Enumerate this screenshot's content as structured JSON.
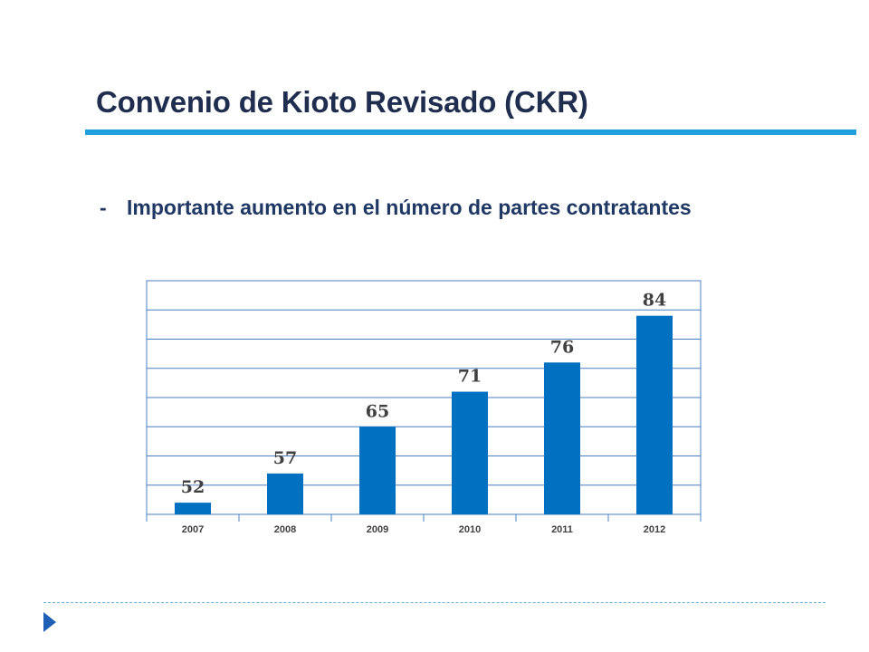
{
  "slide": {
    "title": "Convenio de Kioto Revisado (CKR)",
    "bullet_marker": "-",
    "bullet_text": "Importante aumento en el número de partes contratantes"
  },
  "colors": {
    "title": "#1f2d4e",
    "accent_rule": "#1fa0dc",
    "bullet_text": "#1f3864",
    "bar": "#0070c0",
    "gridline": "#4a7fc1",
    "footer_arrow": "#1f5fb5"
  },
  "chart_data": {
    "type": "bar",
    "categories": [
      "2007",
      "2008",
      "2009",
      "2010",
      "2011",
      "2012"
    ],
    "values": [
      52,
      57,
      65,
      71,
      76,
      84
    ],
    "title": "",
    "xlabel": "",
    "ylabel": "",
    "ylim": [
      50,
      90
    ],
    "grid": true,
    "legend": "none"
  }
}
